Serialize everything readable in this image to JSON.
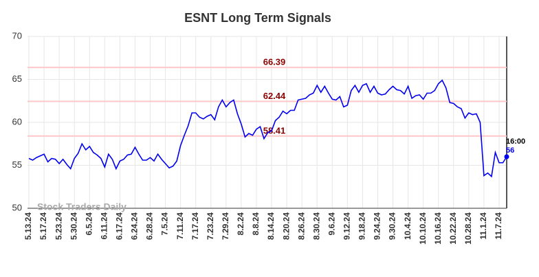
{
  "chart_data": {
    "type": "line",
    "title": "ESNT Long Term Signals",
    "categories": [
      "5.13.24",
      null,
      null,
      null,
      "5.17.24",
      null,
      null,
      null,
      "5.23.24",
      null,
      null,
      null,
      "5.30.24",
      null,
      null,
      null,
      "6.5.24",
      null,
      null,
      null,
      "6.11.24",
      null,
      null,
      null,
      "6.17.24",
      null,
      null,
      null,
      "6.24.24",
      null,
      null,
      null,
      "6.28.24",
      null,
      null,
      null,
      "7.5.24",
      null,
      null,
      null,
      "7.11.24",
      null,
      null,
      null,
      "7.17.24",
      null,
      null,
      null,
      "7.23.24",
      null,
      null,
      null,
      "7.29.24",
      null,
      null,
      null,
      "8.2.24",
      null,
      null,
      null,
      "8.8.24",
      null,
      null,
      null,
      "8.14.24",
      null,
      null,
      null,
      "8.20.24",
      null,
      null,
      null,
      "8.26.24",
      null,
      null,
      null,
      "8.30.24",
      null,
      null,
      null,
      "9.6.24",
      null,
      null,
      null,
      "9.12.24",
      null,
      null,
      null,
      "9.18.24",
      null,
      null,
      null,
      "9.24.24",
      null,
      null,
      null,
      "9.30.24",
      null,
      null,
      null,
      "10.4.24",
      null,
      null,
      null,
      "10.10.24",
      null,
      null,
      null,
      "10.16.24",
      null,
      null,
      null,
      "10.22.24",
      null,
      null,
      null,
      "10.28.24",
      null,
      null,
      null,
      "11.1.24",
      null,
      null,
      null,
      "11.7.24",
      null,
      null
    ],
    "values": [
      55.8,
      55.6,
      55.9,
      56.1,
      56.3,
      55.4,
      55.8,
      55.7,
      55.2,
      55.7,
      55.1,
      54.6,
      55.8,
      56.4,
      57.5,
      56.8,
      57.2,
      56.5,
      56.2,
      55.8,
      54.8,
      56.3,
      55.7,
      54.6,
      55.5,
      55.7,
      56.2,
      56.3,
      57.1,
      56.3,
      55.6,
      55.6,
      55.9,
      55.5,
      56.3,
      55.7,
      55.2,
      54.7,
      54.9,
      55.5,
      57.3,
      58.5,
      59.6,
      61.1,
      61.1,
      60.6,
      60.4,
      60.7,
      60.9,
      60.3,
      61.8,
      62.6,
      61.8,
      62.3,
      62.6,
      61.0,
      59.8,
      58.3,
      58.7,
      58.5,
      59.2,
      59.5,
      58.1,
      58.8,
      59.0,
      60.2,
      60.6,
      61.3,
      61.0,
      61.4,
      61.4,
      62.6,
      62.7,
      62.8,
      63.2,
      63.4,
      64.3,
      63.5,
      64.2,
      63.4,
      62.7,
      62.6,
      63.0,
      61.8,
      62.0,
      63.7,
      64.3,
      63.5,
      64.3,
      64.5,
      63.5,
      64.2,
      63.4,
      63.2,
      63.3,
      63.8,
      64.2,
      63.8,
      63.7,
      63.3,
      64.2,
      62.8,
      63.1,
      63.2,
      62.7,
      63.4,
      63.4,
      63.7,
      64.5,
      64.9,
      64.0,
      62.3,
      62.2,
      61.8,
      61.6,
      60.5,
      61.1,
      60.9,
      61.0,
      60.0,
      53.8,
      54.1,
      53.7,
      56.5,
      55.3,
      55.3,
      56
    ],
    "color": "#0000ee",
    "levels": [
      66.39,
      62.44,
      58.41
    ],
    "level_color": "#ffc8c8",
    "level_label_color": "#8b0000",
    "time_label": "16:00",
    "watermark": "Stock Traders Daily",
    "ylim": [
      50,
      70
    ],
    "yticks": [
      50,
      55,
      60,
      65,
      70
    ],
    "grid": true
  }
}
